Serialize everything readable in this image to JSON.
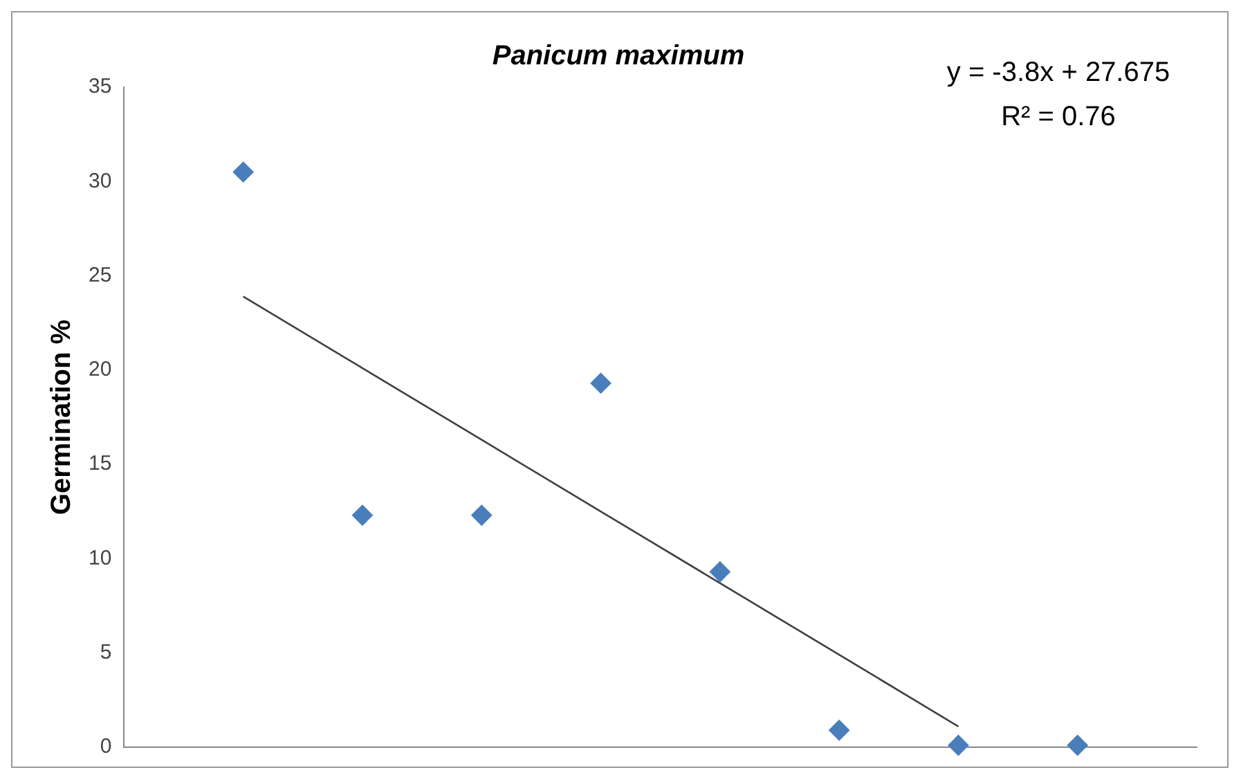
{
  "chart_data": {
    "type": "scatter",
    "title": "Panicum maximum",
    "ylabel": "Germination %",
    "categories": [
      null,
      null,
      null,
      null,
      null,
      null,
      null,
      null
    ],
    "ylim": [
      0,
      35
    ],
    "yticks": [
      0,
      5,
      10,
      15,
      20,
      25,
      30,
      35
    ],
    "tick_labels": "y",
    "grid": false,
    "legend": false,
    "marker": "diamond",
    "series": [
      {
        "color": "#4a7ebb",
        "values": [
          30.5,
          12.3,
          12.3,
          19.3,
          9.3,
          0.9,
          0.1,
          0.1
        ]
      },
      {
        "type": "line",
        "color": "#404040",
        "marker": "none",
        "line_style": "solid",
        "values": [
          23.9,
          20.1,
          16.3,
          12.5,
          8.7,
          4.9,
          1.1,
          null
        ]
      }
    ],
    "annotations": [
      "y = -3.8x + 27.675",
      "R² = 0.76"
    ]
  }
}
